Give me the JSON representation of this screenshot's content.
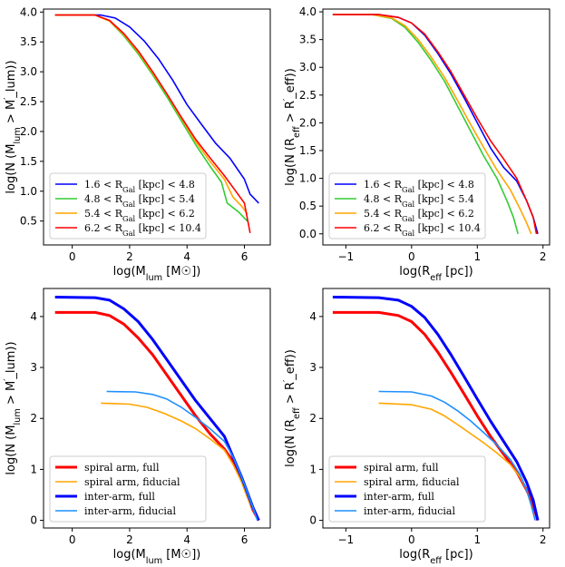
{
  "chart_data": [
    {
      "type": "line",
      "panel": "top-left",
      "xlabel": "log(M_lum [M☉])",
      "ylabel": "log(N (M_lum > M'_lum))",
      "xlim": [
        -1.0,
        6.9
      ],
      "ylim": [
        0.1,
        4.05
      ],
      "xticks": [
        0,
        2,
        4,
        6
      ],
      "yticks": [
        0.5,
        1.0,
        1.5,
        2.0,
        2.5,
        3.0,
        3.5,
        4.0
      ],
      "legend": "lower-left",
      "series": [
        {
          "name": "1.6 < R_Gal [kpc] < 4.8",
          "color": "#0000ff",
          "width": 1.6,
          "points": [
            [
              -0.6,
              3.95
            ],
            [
              1.0,
              3.95
            ],
            [
              1.5,
              3.9
            ],
            [
              2.0,
              3.75
            ],
            [
              2.5,
              3.52
            ],
            [
              3.0,
              3.22
            ],
            [
              3.5,
              2.86
            ],
            [
              4.0,
              2.45
            ],
            [
              4.5,
              2.12
            ],
            [
              5.0,
              1.8
            ],
            [
              5.5,
              1.55
            ],
            [
              6.0,
              1.2
            ],
            [
              6.2,
              0.95
            ],
            [
              6.5,
              0.8
            ]
          ]
        },
        {
          "name": "4.8 < R_Gal [kpc] < 5.4",
          "color": "#33cc33",
          "width": 1.6,
          "points": [
            [
              -0.6,
              3.95
            ],
            [
              0.8,
              3.95
            ],
            [
              1.3,
              3.85
            ],
            [
              1.8,
              3.6
            ],
            [
              2.3,
              3.3
            ],
            [
              2.8,
              2.95
            ],
            [
              3.3,
              2.58
            ],
            [
              3.8,
              2.18
            ],
            [
              4.3,
              1.78
            ],
            [
              4.8,
              1.42
            ],
            [
              5.2,
              1.15
            ],
            [
              5.4,
              0.8
            ],
            [
              5.8,
              0.65
            ],
            [
              6.1,
              0.5
            ]
          ]
        },
        {
          "name": "5.4 < R_Gal [kpc] < 6.2",
          "color": "#ffa500",
          "width": 1.6,
          "points": [
            [
              -0.6,
              3.95
            ],
            [
              0.8,
              3.95
            ],
            [
              1.3,
              3.85
            ],
            [
              1.8,
              3.62
            ],
            [
              2.3,
              3.33
            ],
            [
              2.8,
              2.98
            ],
            [
              3.3,
              2.62
            ],
            [
              3.8,
              2.22
            ],
            [
              4.3,
              1.83
            ],
            [
              4.8,
              1.5
            ],
            [
              5.3,
              1.2
            ],
            [
              5.6,
              0.9
            ],
            [
              5.9,
              0.75
            ],
            [
              6.1,
              0.62
            ]
          ]
        },
        {
          "name": "6.2 < R_Gal [kpc] < 10.4",
          "color": "#ff0000",
          "width": 1.6,
          "points": [
            [
              -0.6,
              3.95
            ],
            [
              0.8,
              3.95
            ],
            [
              1.3,
              3.86
            ],
            [
              1.8,
              3.64
            ],
            [
              2.3,
              3.35
            ],
            [
              2.8,
              3.0
            ],
            [
              3.3,
              2.63
            ],
            [
              3.8,
              2.24
            ],
            [
              4.3,
              1.87
            ],
            [
              4.8,
              1.56
            ],
            [
              5.3,
              1.26
            ],
            [
              5.7,
              1.0
            ],
            [
              6.0,
              0.8
            ],
            [
              6.2,
              0.3
            ]
          ]
        }
      ]
    },
    {
      "type": "line",
      "panel": "top-right",
      "xlabel": "log(R_eff [pc])",
      "ylabel": "log(N (R_eff > R'_eff))",
      "xlim": [
        -1.35,
        2.1
      ],
      "ylim": [
        -0.2,
        4.05
      ],
      "xticks": [
        -1,
        0,
        1,
        2
      ],
      "yticks": [
        0.0,
        0.5,
        1.0,
        1.5,
        2.0,
        2.5,
        3.0,
        3.5,
        4.0
      ],
      "legend": "lower-left",
      "series": [
        {
          "name": "1.6 < R_Gal [kpc] < 4.8",
          "color": "#0000ff",
          "width": 1.6,
          "points": [
            [
              -1.2,
              3.95
            ],
            [
              -0.5,
              3.95
            ],
            [
              -0.2,
              3.9
            ],
            [
              0.0,
              3.8
            ],
            [
              0.2,
              3.58
            ],
            [
              0.4,
              3.25
            ],
            [
              0.6,
              2.88
            ],
            [
              0.8,
              2.45
            ],
            [
              1.0,
              2.0
            ],
            [
              1.2,
              1.55
            ],
            [
              1.4,
              1.2
            ],
            [
              1.6,
              0.95
            ],
            [
              1.75,
              0.6
            ],
            [
              1.85,
              0.3
            ],
            [
              1.92,
              0.0
            ]
          ]
        },
        {
          "name": "4.8 < R_Gal [kpc] < 5.4",
          "color": "#33cc33",
          "width": 1.6,
          "points": [
            [
              -1.2,
              3.95
            ],
            [
              -0.6,
              3.95
            ],
            [
              -0.3,
              3.88
            ],
            [
              -0.1,
              3.72
            ],
            [
              0.1,
              3.45
            ],
            [
              0.3,
              3.12
            ],
            [
              0.5,
              2.75
            ],
            [
              0.7,
              2.3
            ],
            [
              0.9,
              1.85
            ],
            [
              1.1,
              1.4
            ],
            [
              1.3,
              1.0
            ],
            [
              1.45,
              0.6
            ],
            [
              1.55,
              0.3
            ],
            [
              1.62,
              0.0
            ]
          ]
        },
        {
          "name": "5.4 < R_Gal [kpc] < 6.2",
          "color": "#ffa500",
          "width": 1.6,
          "points": [
            [
              -1.2,
              3.95
            ],
            [
              -0.6,
              3.95
            ],
            [
              -0.3,
              3.89
            ],
            [
              -0.1,
              3.75
            ],
            [
              0.1,
              3.5
            ],
            [
              0.3,
              3.18
            ],
            [
              0.5,
              2.82
            ],
            [
              0.7,
              2.4
            ],
            [
              0.9,
              1.97
            ],
            [
              1.1,
              1.55
            ],
            [
              1.3,
              1.15
            ],
            [
              1.5,
              0.8
            ],
            [
              1.65,
              0.45
            ],
            [
              1.75,
              0.2
            ],
            [
              1.82,
              0.0
            ]
          ]
        },
        {
          "name": "6.2 < R_Gal [kpc] < 10.4",
          "color": "#ff0000",
          "width": 1.6,
          "points": [
            [
              -1.2,
              3.95
            ],
            [
              -0.5,
              3.95
            ],
            [
              -0.2,
              3.9
            ],
            [
              0.0,
              3.8
            ],
            [
              0.2,
              3.6
            ],
            [
              0.4,
              3.28
            ],
            [
              0.6,
              2.92
            ],
            [
              0.8,
              2.5
            ],
            [
              1.0,
              2.08
            ],
            [
              1.2,
              1.68
            ],
            [
              1.4,
              1.35
            ],
            [
              1.6,
              1.0
            ],
            [
              1.75,
              0.6
            ],
            [
              1.85,
              0.3
            ],
            [
              1.9,
              0.0
            ]
          ]
        }
      ]
    },
    {
      "type": "line",
      "panel": "bottom-left",
      "xlabel": "log(M_lum [M☉])",
      "ylabel": "log(N (M_lum > M'_lum))",
      "xlim": [
        -1.0,
        6.9
      ],
      "ylim": [
        -0.15,
        4.55
      ],
      "xticks": [
        0,
        2,
        4,
        6
      ],
      "yticks": [
        0,
        1,
        2,
        3,
        4
      ],
      "legend": "lower-left",
      "series": [
        {
          "name": "spiral arm, full",
          "color": "#ff0000",
          "width": 3.0,
          "points": [
            [
              -0.6,
              4.08
            ],
            [
              0.8,
              4.08
            ],
            [
              1.3,
              4.02
            ],
            [
              1.8,
              3.85
            ],
            [
              2.3,
              3.58
            ],
            [
              2.8,
              3.25
            ],
            [
              3.3,
              2.85
            ],
            [
              3.8,
              2.45
            ],
            [
              4.3,
              2.05
            ],
            [
              4.8,
              1.7
            ],
            [
              5.3,
              1.4
            ],
            [
              5.6,
              1.15
            ],
            [
              5.9,
              0.8
            ],
            [
              6.1,
              0.5
            ],
            [
              6.3,
              0.2
            ],
            [
              6.5,
              0.0
            ]
          ]
        },
        {
          "name": "spiral arm, fiducial",
          "color": "#ffa500",
          "width": 1.6,
          "points": [
            [
              1.0,
              2.3
            ],
            [
              2.0,
              2.28
            ],
            [
              2.6,
              2.22
            ],
            [
              3.2,
              2.1
            ],
            [
              3.8,
              1.95
            ],
            [
              4.3,
              1.8
            ],
            [
              4.8,
              1.6
            ],
            [
              5.3,
              1.38
            ],
            [
              5.6,
              1.1
            ],
            [
              5.9,
              0.75
            ],
            [
              6.1,
              0.45
            ],
            [
              6.3,
              0.2
            ],
            [
              6.5,
              0.0
            ]
          ]
        },
        {
          "name": "inter-arm, full",
          "color": "#0000ff",
          "width": 3.0,
          "points": [
            [
              -0.6,
              4.38
            ],
            [
              0.8,
              4.37
            ],
            [
              1.3,
              4.32
            ],
            [
              1.8,
              4.15
            ],
            [
              2.3,
              3.9
            ],
            [
              2.8,
              3.55
            ],
            [
              3.3,
              3.15
            ],
            [
              3.8,
              2.75
            ],
            [
              4.3,
              2.35
            ],
            [
              4.8,
              2.0
            ],
            [
              5.3,
              1.65
            ],
            [
              5.6,
              1.25
            ],
            [
              5.9,
              0.85
            ],
            [
              6.1,
              0.55
            ],
            [
              6.3,
              0.25
            ],
            [
              6.5,
              0.0
            ]
          ]
        },
        {
          "name": "inter-arm, fiducial",
          "color": "#1e90ff",
          "width": 1.6,
          "points": [
            [
              1.2,
              2.53
            ],
            [
              2.2,
              2.52
            ],
            [
              2.8,
              2.47
            ],
            [
              3.3,
              2.38
            ],
            [
              3.8,
              2.22
            ],
            [
              4.3,
              2.02
            ],
            [
              4.8,
              1.8
            ],
            [
              5.3,
              1.55
            ],
            [
              5.6,
              1.25
            ],
            [
              5.9,
              0.85
            ],
            [
              6.1,
              0.55
            ],
            [
              6.3,
              0.25
            ],
            [
              6.45,
              0.0
            ]
          ]
        }
      ]
    },
    {
      "type": "line",
      "panel": "bottom-right",
      "xlabel": "log(R_eff [pc])",
      "ylabel": "log(N (R_eff > R'_eff))",
      "xlim": [
        -1.35,
        2.1
      ],
      "ylim": [
        -0.15,
        4.55
      ],
      "xticks": [
        -1,
        0,
        1,
        2
      ],
      "yticks": [
        0,
        1,
        2,
        3,
        4
      ],
      "legend": "lower-left",
      "series": [
        {
          "name": "spiral arm, full",
          "color": "#ff0000",
          "width": 3.0,
          "points": [
            [
              -1.2,
              4.08
            ],
            [
              -0.5,
              4.08
            ],
            [
              -0.2,
              4.02
            ],
            [
              0.0,
              3.9
            ],
            [
              0.2,
              3.65
            ],
            [
              0.4,
              3.3
            ],
            [
              0.6,
              2.9
            ],
            [
              0.8,
              2.48
            ],
            [
              1.0,
              2.05
            ],
            [
              1.2,
              1.65
            ],
            [
              1.4,
              1.3
            ],
            [
              1.6,
              0.95
            ],
            [
              1.75,
              0.6
            ],
            [
              1.85,
              0.3
            ],
            [
              1.92,
              0.0
            ]
          ]
        },
        {
          "name": "spiral arm, fiducial",
          "color": "#ffa500",
          "width": 1.6,
          "points": [
            [
              -0.5,
              2.3
            ],
            [
              0.0,
              2.27
            ],
            [
              0.3,
              2.18
            ],
            [
              0.5,
              2.05
            ],
            [
              0.7,
              1.88
            ],
            [
              0.9,
              1.7
            ],
            [
              1.1,
              1.52
            ],
            [
              1.3,
              1.32
            ],
            [
              1.5,
              1.1
            ],
            [
              1.65,
              0.85
            ],
            [
              1.75,
              0.6
            ],
            [
              1.82,
              0.3
            ],
            [
              1.88,
              0.0
            ]
          ]
        },
        {
          "name": "inter-arm, full",
          "color": "#0000ff",
          "width": 3.0,
          "points": [
            [
              -1.2,
              4.38
            ],
            [
              -0.5,
              4.37
            ],
            [
              -0.2,
              4.32
            ],
            [
              0.0,
              4.2
            ],
            [
              0.2,
              3.98
            ],
            [
              0.4,
              3.65
            ],
            [
              0.6,
              3.25
            ],
            [
              0.8,
              2.82
            ],
            [
              1.0,
              2.38
            ],
            [
              1.2,
              1.95
            ],
            [
              1.4,
              1.55
            ],
            [
              1.6,
              1.15
            ],
            [
              1.75,
              0.75
            ],
            [
              1.85,
              0.4
            ],
            [
              1.92,
              0.0
            ]
          ]
        },
        {
          "name": "inter-arm, fiducial",
          "color": "#1e90ff",
          "width": 1.6,
          "points": [
            [
              -0.5,
              2.53
            ],
            [
              0.0,
              2.52
            ],
            [
              0.3,
              2.44
            ],
            [
              0.5,
              2.32
            ],
            [
              0.7,
              2.15
            ],
            [
              0.9,
              1.95
            ],
            [
              1.1,
              1.72
            ],
            [
              1.3,
              1.48
            ],
            [
              1.5,
              1.2
            ],
            [
              1.65,
              0.9
            ],
            [
              1.75,
              0.6
            ],
            [
              1.82,
              0.3
            ],
            [
              1.88,
              0.0
            ]
          ]
        }
      ]
    }
  ]
}
